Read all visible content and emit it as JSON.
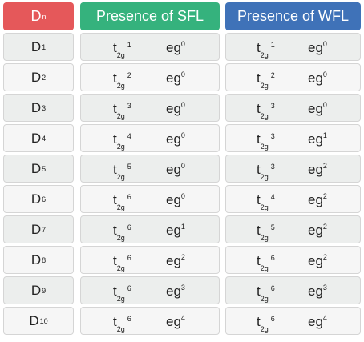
{
  "header": {
    "col1_base": "D",
    "col1_sup": "n",
    "col2": "Presence of SFL",
    "col3": "Presence of WFL"
  },
  "labels": {
    "t": "t",
    "t_sub": "2g",
    "eg": "eg"
  },
  "rows": [
    {
      "d": "D",
      "n": "1",
      "sfl_t": "1",
      "sfl_e": "0",
      "wfl_t": "1",
      "wfl_e": "0"
    },
    {
      "d": "D",
      "n": "2",
      "sfl_t": "2",
      "sfl_e": "0",
      "wfl_t": "2",
      "wfl_e": "0"
    },
    {
      "d": "D",
      "n": "3",
      "sfl_t": "3",
      "sfl_e": "0",
      "wfl_t": "3",
      "wfl_e": "0"
    },
    {
      "d": "D",
      "n": "4",
      "sfl_t": "4",
      "sfl_e": "0",
      "wfl_t": "3",
      "wfl_e": "1"
    },
    {
      "d": "D",
      "n": "5",
      "sfl_t": "5",
      "sfl_e": "0",
      "wfl_t": "3",
      "wfl_e": "2"
    },
    {
      "d": "D",
      "n": "6",
      "sfl_t": "6",
      "sfl_e": "0",
      "wfl_t": "4",
      "wfl_e": "2"
    },
    {
      "d": "D",
      "n": "7",
      "sfl_t": "6",
      "sfl_e": "1",
      "wfl_t": "5",
      "wfl_e": "2"
    },
    {
      "d": "D",
      "n": "8",
      "sfl_t": "6",
      "sfl_e": "2",
      "wfl_t": "6",
      "wfl_e": "2"
    },
    {
      "d": "D",
      "n": "9",
      "sfl_t": "6",
      "sfl_e": "3",
      "wfl_t": "6",
      "wfl_e": "3"
    },
    {
      "d": "D",
      "n": "10",
      "sfl_t": "6",
      "sfl_e": "4",
      "wfl_t": "6",
      "wfl_e": "4"
    }
  ],
  "colors": {
    "header_dn": "#e5585a",
    "header_sfl": "#35b27d",
    "header_wfl": "#3f72b8",
    "row_odd": "#eceeed",
    "row_even": "#f6f6f6"
  }
}
